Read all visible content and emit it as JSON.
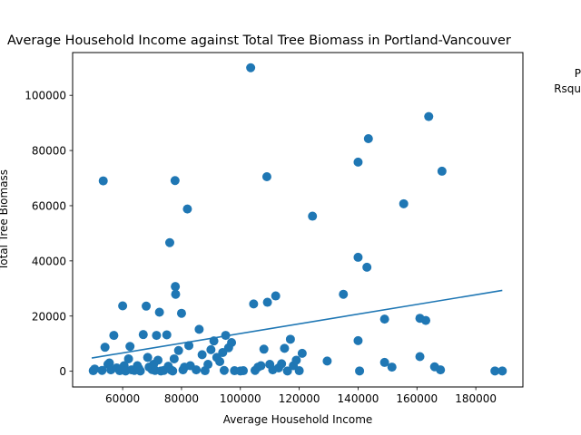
{
  "chart_data": {
    "type": "scatter",
    "title": "Average Household Income against Total Tree Biomass in Portland-Vancouver",
    "xlabel": "Average Household Income",
    "ylabel": "Total Tree Biomass",
    "xlim": [
      43000,
      196000
    ],
    "ylim": [
      -5700,
      115500
    ],
    "xticks": [
      60000,
      80000,
      100000,
      120000,
      140000,
      160000,
      180000
    ],
    "yticks": [
      0,
      20000,
      40000,
      60000,
      80000,
      100000
    ],
    "xtick_labels": [
      "60000",
      "80000",
      "100000",
      "120000",
      "140000",
      "160000",
      "180000"
    ],
    "ytick_labels": [
      "0",
      "20000",
      "40000",
      "60000",
      "80000",
      "100000"
    ],
    "annotation_lines": [
      "P",
      "Rsqu"
    ],
    "point_color": "#1f77b4",
    "line_color": "#1f77b4",
    "grid": false,
    "points": [
      {
        "x": 50000,
        "y": 200
      },
      {
        "x": 50500,
        "y": 800
      },
      {
        "x": 53000,
        "y": 300
      },
      {
        "x": 53400,
        "y": 69000
      },
      {
        "x": 54000,
        "y": 8700
      },
      {
        "x": 55000,
        "y": 2500
      },
      {
        "x": 55500,
        "y": 3000
      },
      {
        "x": 56000,
        "y": 500
      },
      {
        "x": 57000,
        "y": 13000
      },
      {
        "x": 58000,
        "y": 1200
      },
      {
        "x": 59000,
        "y": 200
      },
      {
        "x": 59500,
        "y": 800
      },
      {
        "x": 60000,
        "y": 23700
      },
      {
        "x": 60500,
        "y": 2000
      },
      {
        "x": 61000,
        "y": 100
      },
      {
        "x": 62000,
        "y": 4500
      },
      {
        "x": 62500,
        "y": 9000
      },
      {
        "x": 63000,
        "y": 500
      },
      {
        "x": 64000,
        "y": 300
      },
      {
        "x": 65000,
        "y": 2000
      },
      {
        "x": 65500,
        "y": 1000
      },
      {
        "x": 66000,
        "y": 100
      },
      {
        "x": 67000,
        "y": 13300
      },
      {
        "x": 68000,
        "y": 23600
      },
      {
        "x": 68500,
        "y": 5000
      },
      {
        "x": 69000,
        "y": 1500
      },
      {
        "x": 70000,
        "y": 600
      },
      {
        "x": 70500,
        "y": 2500
      },
      {
        "x": 71000,
        "y": 300
      },
      {
        "x": 71500,
        "y": 13000
      },
      {
        "x": 72000,
        "y": 4000
      },
      {
        "x": 72500,
        "y": 21400
      },
      {
        "x": 73000,
        "y": 100
      },
      {
        "x": 74000,
        "y": 300
      },
      {
        "x": 75000,
        "y": 13200
      },
      {
        "x": 75500,
        "y": 1800
      },
      {
        "x": 76000,
        "y": 46600
      },
      {
        "x": 76500,
        "y": 400
      },
      {
        "x": 77000,
        "y": 100
      },
      {
        "x": 77500,
        "y": 4500
      },
      {
        "x": 77800,
        "y": 69100
      },
      {
        "x": 77900,
        "y": 30700
      },
      {
        "x": 78000,
        "y": 27900
      },
      {
        "x": 79000,
        "y": 7500
      },
      {
        "x": 80000,
        "y": 21000
      },
      {
        "x": 80500,
        "y": 500
      },
      {
        "x": 81000,
        "y": 1500
      },
      {
        "x": 82000,
        "y": 58800
      },
      {
        "x": 82500,
        "y": 9300
      },
      {
        "x": 83000,
        "y": 2000
      },
      {
        "x": 85000,
        "y": 500
      },
      {
        "x": 86000,
        "y": 15200
      },
      {
        "x": 87000,
        "y": 6000
      },
      {
        "x": 88000,
        "y": 200
      },
      {
        "x": 89000,
        "y": 2500
      },
      {
        "x": 90000,
        "y": 7800
      },
      {
        "x": 91000,
        "y": 11000
      },
      {
        "x": 92000,
        "y": 5000
      },
      {
        "x": 93000,
        "y": 3500
      },
      {
        "x": 94000,
        "y": 6800
      },
      {
        "x": 94500,
        "y": 300
      },
      {
        "x": 95000,
        "y": 13000
      },
      {
        "x": 96000,
        "y": 8500
      },
      {
        "x": 97000,
        "y": 10400
      },
      {
        "x": 98000,
        "y": 200
      },
      {
        "x": 100000,
        "y": 100
      },
      {
        "x": 101000,
        "y": 200
      },
      {
        "x": 103500,
        "y": 110000
      },
      {
        "x": 104500,
        "y": 24400
      },
      {
        "x": 105000,
        "y": 300
      },
      {
        "x": 106000,
        "y": 1500
      },
      {
        "x": 107000,
        "y": 2000
      },
      {
        "x": 108000,
        "y": 8000
      },
      {
        "x": 109000,
        "y": 70500
      },
      {
        "x": 109200,
        "y": 25000
      },
      {
        "x": 110000,
        "y": 2500
      },
      {
        "x": 111000,
        "y": 500
      },
      {
        "x": 112000,
        "y": 27300
      },
      {
        "x": 113000,
        "y": 1200
      },
      {
        "x": 114000,
        "y": 2700
      },
      {
        "x": 115000,
        "y": 8300
      },
      {
        "x": 116000,
        "y": 100
      },
      {
        "x": 117000,
        "y": 11600
      },
      {
        "x": 118000,
        "y": 2000
      },
      {
        "x": 119000,
        "y": 4000
      },
      {
        "x": 120000,
        "y": 200
      },
      {
        "x": 121000,
        "y": 6500
      },
      {
        "x": 124500,
        "y": 56200
      },
      {
        "x": 129500,
        "y": 3700
      },
      {
        "x": 135000,
        "y": 27900
      },
      {
        "x": 140000,
        "y": 75800
      },
      {
        "x": 140000,
        "y": 41300
      },
      {
        "x": 140000,
        "y": 11100
      },
      {
        "x": 140500,
        "y": 100
      },
      {
        "x": 143000,
        "y": 37700
      },
      {
        "x": 143500,
        "y": 84300
      },
      {
        "x": 149000,
        "y": 18900
      },
      {
        "x": 149000,
        "y": 3200
      },
      {
        "x": 151500,
        "y": 1500
      },
      {
        "x": 155500,
        "y": 60700
      },
      {
        "x": 161000,
        "y": 19200
      },
      {
        "x": 161000,
        "y": 5300
      },
      {
        "x": 163000,
        "y": 18400
      },
      {
        "x": 164000,
        "y": 92300
      },
      {
        "x": 166000,
        "y": 1600
      },
      {
        "x": 168000,
        "y": 500
      },
      {
        "x": 168500,
        "y": 72500
      },
      {
        "x": 186500,
        "y": 100
      },
      {
        "x": 189000,
        "y": 100
      }
    ],
    "regression": {
      "x": [
        49500,
        189000
      ],
      "y": [
        4800,
        29300
      ]
    }
  }
}
